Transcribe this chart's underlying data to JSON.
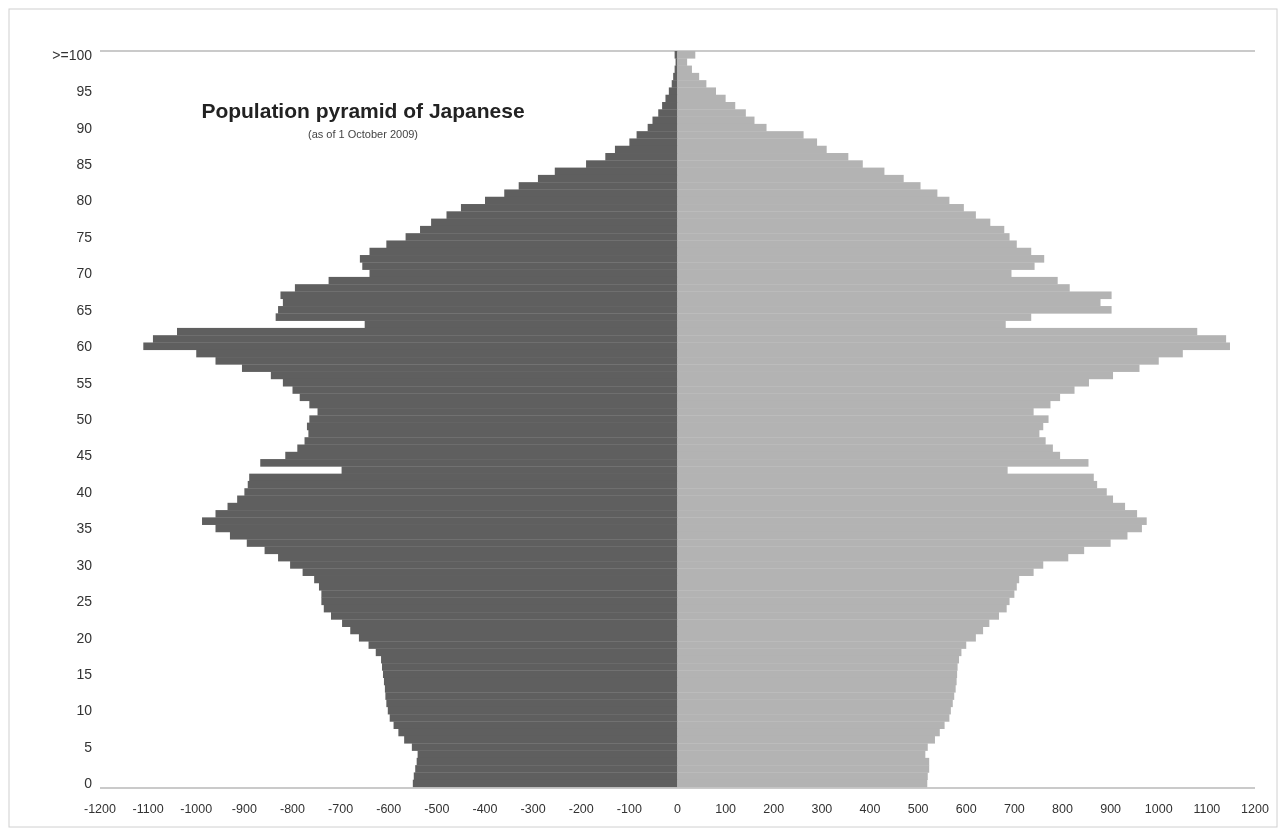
{
  "chart_data": {
    "type": "bar",
    "orientation": "horizontal",
    "stacked": true,
    "title": "Population pyramid of Japanese",
    "subtitle": "(as of 1 October 2009)",
    "categories": [
      ">=100",
      null,
      null,
      null,
      null,
      "95",
      null,
      null,
      null,
      null,
      "90",
      null,
      null,
      null,
      null,
      "85",
      null,
      null,
      null,
      null,
      "80",
      null,
      null,
      null,
      null,
      "75",
      null,
      null,
      null,
      null,
      "70",
      null,
      null,
      null,
      null,
      "65",
      null,
      null,
      null,
      null,
      "60",
      null,
      null,
      null,
      null,
      "55",
      null,
      null,
      null,
      null,
      "50",
      null,
      null,
      null,
      null,
      "45",
      null,
      null,
      null,
      null,
      "40",
      null,
      null,
      null,
      null,
      "35",
      null,
      null,
      null,
      null,
      "30",
      null,
      null,
      null,
      null,
      "25",
      null,
      null,
      null,
      null,
      "20",
      null,
      null,
      null,
      null,
      "15",
      null,
      null,
      null,
      null,
      "10",
      null,
      null,
      null,
      null,
      "5",
      null,
      null,
      null,
      null,
      "0"
    ],
    "series": [
      {
        "color": "#5f5f5f",
        "values": [
          -6,
          -4,
          -6,
          -9,
          -12,
          -18,
          -25,
          -32,
          -40,
          -52,
          -62,
          -85,
          -100,
          -130,
          -150,
          -190,
          -255,
          -290,
          -330,
          -360,
          -400,
          -450,
          -480,
          -512,
          -535,
          -565,
          -605,
          -640,
          -660,
          -655,
          -640,
          -725,
          -795,
          -825,
          -820,
          -830,
          -835,
          -650,
          -1040,
          -1090,
          -1110,
          -1000,
          -960,
          -905,
          -845,
          -820,
          -800,
          -785,
          -765,
          -748,
          -765,
          -770,
          -767,
          -775,
          -790,
          -815,
          -867,
          -698,
          -890,
          -893,
          -900,
          -915,
          -935,
          -960,
          -988,
          -960,
          -930,
          -895,
          -858,
          -830,
          -805,
          -779,
          -755,
          -745,
          -740,
          -740,
          -735,
          -720,
          -697,
          -680,
          -662,
          -642,
          -627,
          -616,
          -614,
          -612,
          -610,
          -608,
          -607,
          -605,
          -602,
          -598,
          -590,
          -580,
          -568,
          -552,
          -540,
          -542,
          -545,
          -548,
          -550
        ]
      },
      {
        "color": "#b3b3b3",
        "values": [
          37,
          20,
          30,
          45,
          60,
          80,
          100,
          120,
          142,
          160,
          185,
          262,
          290,
          310,
          355,
          385,
          430,
          470,
          505,
          540,
          565,
          595,
          620,
          650,
          679,
          690,
          705,
          735,
          762,
          742,
          694,
          790,
          815,
          902,
          879,
          902,
          735,
          682,
          1080,
          1140,
          1148,
          1050,
          1000,
          960,
          905,
          855,
          825,
          795,
          775,
          740,
          771,
          760,
          752,
          765,
          780,
          795,
          854,
          686,
          865,
          872,
          892,
          905,
          930,
          955,
          975,
          965,
          935,
          900,
          845,
          812,
          760,
          740,
          710,
          705,
          700,
          690,
          684,
          668,
          648,
          635,
          620,
          600,
          590,
          585,
          582,
          581,
          580,
          578,
          575,
          572,
          568,
          565,
          555,
          545,
          535,
          520,
          515,
          523,
          523,
          520,
          519
        ]
      }
    ],
    "xlim": [
      -1200,
      1200
    ],
    "xticks": [
      -1200,
      -1100,
      -1000,
      -900,
      -800,
      -700,
      -600,
      -500,
      -400,
      -300,
      -200,
      -100,
      0,
      100,
      200,
      300,
      400,
      500,
      600,
      700,
      800,
      900,
      1000,
      1100,
      1200
    ]
  }
}
